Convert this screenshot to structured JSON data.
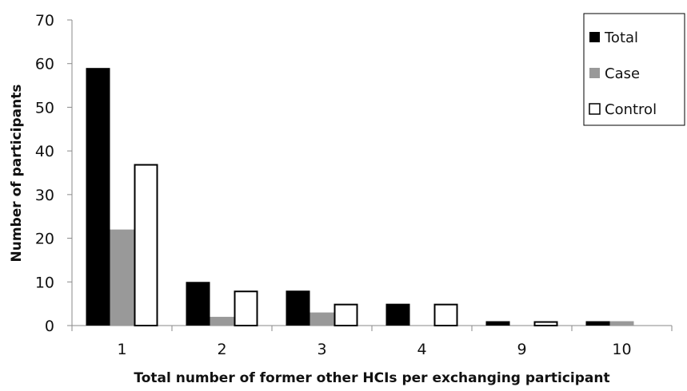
{
  "chart_data": {
    "type": "bar",
    "title": "",
    "xlabel": "Total number of former other HCIs per exchanging participant",
    "ylabel": "Number of participants",
    "categories": [
      "1",
      "2",
      "3",
      "4",
      "9",
      "10"
    ],
    "ylim": [
      0,
      70
    ],
    "yticks": [
      0,
      10,
      20,
      30,
      40,
      50,
      60,
      70
    ],
    "grid": false,
    "legend_position": "top-right",
    "series": [
      {
        "name": "Total",
        "values": [
          59,
          10,
          8,
          5,
          1,
          1
        ],
        "color": "#000000",
        "stroke": "#000000"
      },
      {
        "name": "Case",
        "values": [
          22,
          2,
          3,
          0,
          0,
          1
        ],
        "color": "#999999",
        "stroke": "#999999"
      },
      {
        "name": "Control",
        "values": [
          37,
          8,
          5,
          5,
          1,
          0
        ],
        "color": "#ffffff",
        "stroke": "#000000"
      }
    ]
  }
}
